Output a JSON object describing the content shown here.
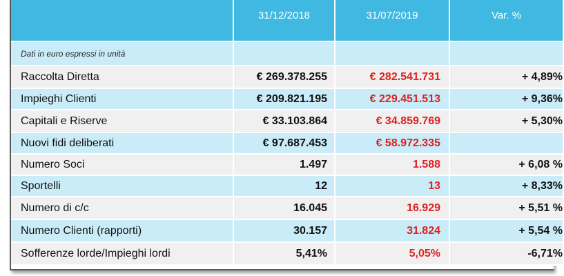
{
  "header": {
    "col_label": "",
    "col_2018": "31/12/2018",
    "col_2019": "31/07/2019",
    "col_var": "Var. %"
  },
  "note": "Dati in euro espressi in unità",
  "rows": [
    {
      "label": "Raccolta Diretta",
      "v2018": "€ 269.378.255",
      "v2019": "€ 282.541.731",
      "var": "+ 4,89%"
    },
    {
      "label": "Impieghi Clienti",
      "v2018": "€ 209.821.195",
      "v2019": "€ 229.451.513",
      "var": "+ 9,36%"
    },
    {
      "label": "Capitali e Riserve",
      "v2018": "€ 33.103.864",
      "v2019": "€ 34.859.769",
      "var": "+ 5,30%"
    },
    {
      "label": "Nuovi fidi deliberati",
      "v2018": "€ 97.687.453",
      "v2019": "€ 58.972.335",
      "var": ""
    },
    {
      "label": "Numero Soci",
      "v2018": "1.497",
      "v2019": "1.588",
      "var": "+ 6,08 %"
    },
    {
      "label": "Sportelli",
      "v2018": "12",
      "v2019": "13",
      "var": "+ 8,33%"
    },
    {
      "label": "Numero di c/c",
      "v2018": "16.045",
      "v2019": "16.929",
      "var": "+ 5,51 %"
    },
    {
      "label": "Numero Clienti (rapporti)",
      "v2018": "30.157",
      "v2019": "31.824",
      "var": "+ 5,54 %"
    },
    {
      "label": "Sofferenze lorde/Impieghi lordi",
      "v2018": "5,41%",
      "v2019": "5,05%",
      "var": "-6,71%"
    }
  ],
  "colors": {
    "header_bg": "#3fb9e2",
    "row_light": "#f0f0f0",
    "row_blue": "#c9ecf8",
    "value_2019": "#e02020"
  }
}
